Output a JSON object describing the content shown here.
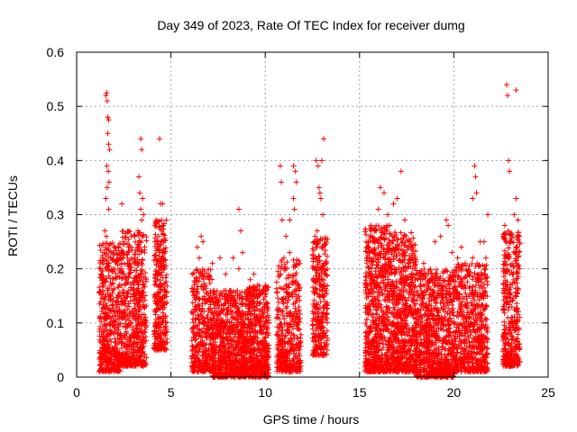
{
  "chart_data": {
    "type": "scatter",
    "title": "Day 349 of 2023, Rate Of TEC Index for receiver dumg",
    "xlabel": "GPS time / hours",
    "ylabel": "ROTI / TECUs",
    "xlim": [
      0,
      25
    ],
    "ylim": [
      0,
      0.6
    ],
    "xticks": [
      "0",
      "5",
      "10",
      "15",
      "20",
      "25"
    ],
    "yticks": [
      "0",
      "0.1",
      "0.2",
      "0.3",
      "0.4",
      "0.5",
      "0.6"
    ],
    "grid": true,
    "marker": "+",
    "color": "#ff0000",
    "series": [
      {
        "points": [
          [
            1.55,
            0.52
          ],
          [
            1.6,
            0.525
          ],
          [
            1.62,
            0.51
          ],
          [
            1.65,
            0.48
          ],
          [
            1.7,
            0.475
          ],
          [
            1.65,
            0.45
          ],
          [
            1.7,
            0.43
          ],
          [
            1.75,
            0.42
          ],
          [
            1.6,
            0.39
          ],
          [
            1.68,
            0.38
          ],
          [
            1.72,
            0.36
          ],
          [
            1.62,
            0.35
          ],
          [
            1.55,
            0.33
          ],
          [
            1.7,
            0.31
          ],
          [
            1.5,
            0.27
          ],
          [
            1.58,
            0.26
          ],
          [
            3.4,
            0.44
          ],
          [
            3.45,
            0.42
          ],
          [
            3.3,
            0.37
          ],
          [
            3.35,
            0.34
          ],
          [
            3.5,
            0.33
          ],
          [
            3.4,
            0.31
          ],
          [
            3.55,
            0.3
          ],
          [
            3.45,
            0.29
          ],
          [
            3.25,
            0.27
          ],
          [
            3.6,
            0.23
          ],
          [
            2.4,
            0.32
          ],
          [
            2.5,
            0.25
          ],
          [
            2.45,
            0.22
          ],
          [
            2.7,
            0.21
          ],
          [
            2.2,
            0.24
          ],
          [
            2.3,
            0.2
          ],
          [
            4.4,
            0.44
          ],
          [
            4.45,
            0.32
          ],
          [
            4.55,
            0.32
          ],
          [
            4.5,
            0.29
          ],
          [
            4.6,
            0.28
          ],
          [
            4.35,
            0.26
          ],
          [
            6.4,
            0.24
          ],
          [
            6.6,
            0.26
          ],
          [
            6.7,
            0.25
          ],
          [
            6.5,
            0.22
          ],
          [
            7.2,
            0.21
          ],
          [
            7.6,
            0.22
          ],
          [
            7.9,
            0.19
          ],
          [
            8.3,
            0.22
          ],
          [
            8.6,
            0.2
          ],
          [
            8.8,
            0.23
          ],
          [
            8.7,
            0.27
          ],
          [
            8.6,
            0.31
          ],
          [
            9.2,
            0.18
          ],
          [
            9.6,
            0.17
          ],
          [
            9.4,
            0.19
          ],
          [
            9.9,
            0.16
          ],
          [
            10.8,
            0.39
          ],
          [
            10.85,
            0.36
          ],
          [
            10.9,
            0.29
          ],
          [
            11.1,
            0.26
          ],
          [
            11.3,
            0.23
          ],
          [
            11.5,
            0.39
          ],
          [
            11.6,
            0.38
          ],
          [
            11.65,
            0.36
          ],
          [
            11.5,
            0.33
          ],
          [
            11.55,
            0.31
          ],
          [
            11.3,
            0.29
          ],
          [
            12.7,
            0.4
          ],
          [
            12.8,
            0.39
          ],
          [
            12.85,
            0.35
          ],
          [
            12.9,
            0.34
          ],
          [
            13.1,
            0.44
          ],
          [
            13.0,
            0.4
          ],
          [
            12.95,
            0.33
          ],
          [
            13.05,
            0.3
          ],
          [
            12.75,
            0.27
          ],
          [
            12.6,
            0.25
          ],
          [
            15.4,
            0.24
          ],
          [
            15.6,
            0.28
          ],
          [
            15.7,
            0.25
          ],
          [
            16.0,
            0.31
          ],
          [
            16.1,
            0.35
          ],
          [
            16.3,
            0.34
          ],
          [
            16.5,
            0.3
          ],
          [
            16.6,
            0.28
          ],
          [
            16.8,
            0.32
          ],
          [
            17.0,
            0.33
          ],
          [
            17.2,
            0.38
          ],
          [
            17.4,
            0.29
          ],
          [
            17.6,
            0.24
          ],
          [
            17.8,
            0.22
          ],
          [
            18.4,
            0.21
          ],
          [
            19.0,
            0.25
          ],
          [
            19.3,
            0.26
          ],
          [
            19.6,
            0.29
          ],
          [
            19.7,
            0.28
          ],
          [
            19.9,
            0.23
          ],
          [
            20.2,
            0.22
          ],
          [
            20.4,
            0.24
          ],
          [
            20.6,
            0.21
          ],
          [
            21.0,
            0.22
          ],
          [
            21.1,
            0.39
          ],
          [
            21.15,
            0.37
          ],
          [
            21.2,
            0.34
          ],
          [
            21.0,
            0.33
          ],
          [
            21.4,
            0.25
          ],
          [
            21.6,
            0.25
          ],
          [
            21.7,
            0.22
          ],
          [
            21.8,
            0.3
          ],
          [
            22.8,
            0.54
          ],
          [
            22.85,
            0.52
          ],
          [
            23.3,
            0.53
          ],
          [
            22.9,
            0.4
          ],
          [
            22.95,
            0.38
          ],
          [
            23.3,
            0.33
          ],
          [
            23.2,
            0.3
          ],
          [
            23.4,
            0.29
          ],
          [
            22.7,
            0.28
          ],
          [
            23.1,
            0.26
          ]
        ]
      }
    ],
    "bands": [
      {
        "x": [
          1.2,
          2.3
        ],
        "y": [
          0.01,
          0.25
        ],
        "n": 460
      },
      {
        "x": [
          2.3,
          3.7
        ],
        "y": [
          0.02,
          0.27
        ],
        "n": 560
      },
      {
        "x": [
          4.1,
          4.8
        ],
        "y": [
          0.05,
          0.29
        ],
        "n": 300
      },
      {
        "x": [
          6.1,
          7.2
        ],
        "y": [
          0.01,
          0.2
        ],
        "n": 380
      },
      {
        "x": [
          7.2,
          9.0
        ],
        "y": [
          0.0,
          0.16
        ],
        "n": 760
      },
      {
        "x": [
          9.0,
          10.2
        ],
        "y": [
          0.0,
          0.17
        ],
        "n": 520
      },
      {
        "x": [
          10.6,
          11.9
        ],
        "y": [
          0.01,
          0.22
        ],
        "n": 420
      },
      {
        "x": [
          12.5,
          13.3
        ],
        "y": [
          0.04,
          0.26
        ],
        "n": 300
      },
      {
        "x": [
          15.3,
          16.5
        ],
        "y": [
          0.01,
          0.28
        ],
        "n": 620
      },
      {
        "x": [
          16.5,
          18.0
        ],
        "y": [
          0.01,
          0.27
        ],
        "n": 720
      },
      {
        "x": [
          18.0,
          20.0
        ],
        "y": [
          0.0,
          0.2
        ],
        "n": 820
      },
      {
        "x": [
          20.0,
          21.8
        ],
        "y": [
          0.01,
          0.21
        ],
        "n": 640
      },
      {
        "x": [
          22.6,
          23.5
        ],
        "y": [
          0.02,
          0.27
        ],
        "n": 380
      }
    ]
  }
}
